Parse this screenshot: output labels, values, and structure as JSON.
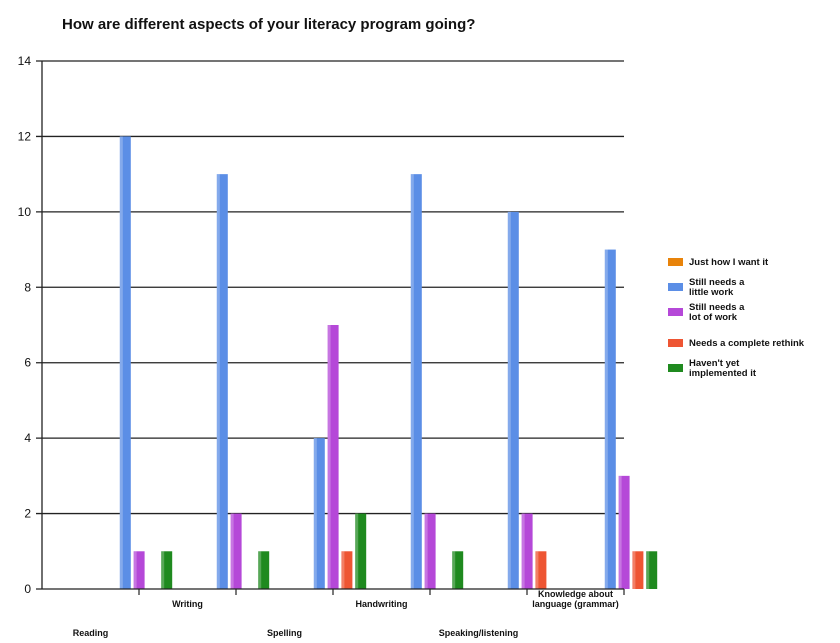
{
  "chart_data": {
    "type": "bar",
    "title": "How are different aspects of your literacy program going?",
    "xlabel": "",
    "ylabel": "",
    "ylim": [
      0,
      14
    ],
    "yticks": [
      0,
      2,
      4,
      6,
      8,
      10,
      12,
      14
    ],
    "grid": true,
    "legend_position": "right",
    "categories": [
      [
        "Reading"
      ],
      [
        "Writing"
      ],
      [
        "Spelling"
      ],
      [
        "Handwriting"
      ],
      [
        "Speaking/listening"
      ],
      [
        "Knowledge about",
        "language (grammar)"
      ]
    ],
    "series": [
      {
        "name": [
          "Just how I want it"
        ],
        "color": "#e8830a",
        "values": [
          0,
          0,
          0,
          0,
          0,
          0
        ]
      },
      {
        "name": [
          "Still needs a",
          "little work"
        ],
        "color": "#5b8ee6",
        "values": [
          12,
          11,
          4,
          11,
          10,
          9
        ]
      },
      {
        "name": [
          "Still needs a",
          "lot of work"
        ],
        "color": "#b548d8",
        "values": [
          1,
          2,
          7,
          2,
          2,
          3
        ]
      },
      {
        "name": [
          "Needs a complete rethink"
        ],
        "color": "#ee5533",
        "values": [
          0,
          0,
          1,
          0,
          1,
          1
        ]
      },
      {
        "name": [
          "Haven't yet",
          "implemented it"
        ],
        "color": "#1f8a1f",
        "values": [
          1,
          1,
          2,
          1,
          0,
          1
        ]
      }
    ]
  }
}
